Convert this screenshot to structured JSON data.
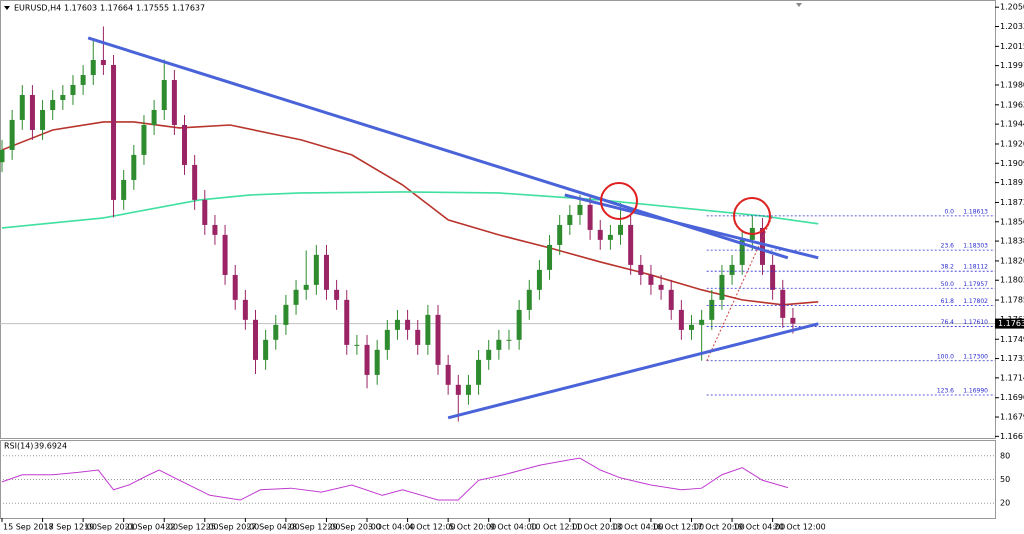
{
  "chart_data": [
    {
      "type": "candlestick",
      "title": "EURUSD,H4",
      "quote": [
        1.17603,
        1.17664,
        1.17555,
        1.17637
      ],
      "up_color": "#2e8b2e",
      "down_color": "#9a2464",
      "x": [
        0,
        2,
        4,
        6,
        8,
        10,
        12,
        14,
        16,
        18,
        20,
        22,
        24,
        26,
        28,
        30,
        32,
        34,
        36,
        38,
        40,
        42,
        44,
        46,
        48,
        50,
        52,
        54,
        56,
        58,
        60,
        62,
        64,
        66,
        68,
        70,
        72,
        74,
        76,
        78,
        80,
        82,
        84,
        86,
        88,
        90,
        92,
        94,
        96,
        98,
        100,
        102,
        104,
        106,
        108,
        110,
        112,
        114,
        116,
        118,
        120,
        122,
        124,
        126,
        128,
        130,
        132,
        134,
        136,
        138,
        140,
        142,
        144,
        146,
        148,
        150,
        152,
        154,
        156
      ],
      "open": [
        1.191,
        1.19211,
        1.19483,
        1.19709,
        1.19392,
        1.19573,
        1.19664,
        1.19709,
        1.198,
        1.1989,
        1.20026,
        1.19981,
        1.18758,
        1.18939,
        1.19166,
        1.19437,
        1.19573,
        1.19845,
        1.19437,
        1.19075,
        1.18758,
        1.18531,
        1.18441,
        1.18078,
        1.17852,
        1.17671,
        1.17308,
        1.1749,
        1.17625,
        1.17807,
        1.17943,
        1.17988,
        1.1826,
        1.17943,
        1.17852,
        1.17444,
        1.17444,
        1.17172,
        1.17399,
        1.1758,
        1.17671,
        1.1758,
        1.17444,
        1.17716,
        1.17263,
        1.17082,
        1.16991,
        1.17082,
        1.17308,
        1.17399,
        1.1749,
        1.1749,
        1.17761,
        1.17943,
        1.18124,
        1.1835,
        1.18531,
        1.18622,
        1.18713,
        1.18486,
        1.18396,
        1.18441,
        1.18531,
        1.18169,
        1.18078,
        1.17988,
        1.17943,
        1.17761,
        1.1758,
        1.17625,
        1.17671,
        1.17852,
        1.18078,
        1.18169,
        1.18396,
        1.18504,
        1.18169,
        1.17943,
        1.17689
      ],
      "high": [
        1.19301,
        1.19573,
        1.19799,
        1.19799,
        1.19663,
        1.19754,
        1.19799,
        1.1989,
        1.1998,
        1.2022,
        1.2033,
        1.20071,
        1.19029,
        1.19256,
        1.19527,
        1.19663,
        1.2003,
        1.19935,
        1.19527,
        1.19165,
        1.18848,
        1.18621,
        1.18531,
        1.18168,
        1.17942,
        1.17761,
        1.1758,
        1.17715,
        1.17897,
        1.18033,
        1.183,
        1.1835,
        1.1835,
        1.18033,
        1.17942,
        1.17534,
        1.17534,
        1.17489,
        1.1767,
        1.17761,
        1.17761,
        1.1767,
        1.17806,
        1.17806,
        1.17353,
        1.17172,
        1.17172,
        1.17398,
        1.17489,
        1.1758,
        1.1758,
        1.17851,
        1.18033,
        1.18214,
        1.1844,
        1.18621,
        1.18712,
        1.18803,
        1.18803,
        1.18576,
        1.18531,
        1.1873,
        1.18621,
        1.18259,
        1.18168,
        1.18078,
        1.18033,
        1.17851,
        1.17715,
        1.17761,
        1.17942,
        1.18168,
        1.18259,
        1.18486,
        1.1861,
        1.18594,
        1.18259,
        1.18033,
        1.17779
      ],
      "low": [
        1.1901,
        1.19121,
        1.19393,
        1.19302,
        1.19302,
        1.19483,
        1.19574,
        1.19619,
        1.1971,
        1.198,
        1.19891,
        1.186,
        1.18668,
        1.18849,
        1.19076,
        1.19347,
        1.19483,
        1.19347,
        1.18985,
        1.18668,
        1.18441,
        1.18351,
        1.17988,
        1.17762,
        1.17581,
        1.1718,
        1.17218,
        1.174,
        1.17535,
        1.17717,
        1.17853,
        1.17898,
        1.17853,
        1.17762,
        1.17354,
        1.17354,
        1.1705,
        1.17082,
        1.17309,
        1.1749,
        1.1749,
        1.17354,
        1.17354,
        1.17173,
        1.16992,
        1.1675,
        1.16901,
        1.16992,
        1.17218,
        1.17309,
        1.174,
        1.174,
        1.17671,
        1.17853,
        1.18034,
        1.1826,
        1.18441,
        1.18532,
        1.18396,
        1.18306,
        1.18306,
        1.18351,
        1.18079,
        1.17988,
        1.17898,
        1.17853,
        1.17671,
        1.1749,
        1.1749,
        1.173,
        1.17581,
        1.17762,
        1.17988,
        1.18079,
        1.18306,
        1.18079,
        1.17853,
        1.17599,
        1.17547
      ],
      "close": [
        1.19211,
        1.19483,
        1.19709,
        1.19392,
        1.19573,
        1.19664,
        1.19709,
        1.198,
        1.1989,
        1.20026,
        1.19981,
        1.18758,
        1.18939,
        1.19166,
        1.19437,
        1.19573,
        1.19845,
        1.19437,
        1.19075,
        1.18758,
        1.18531,
        1.18441,
        1.18078,
        1.17852,
        1.17671,
        1.17308,
        1.1749,
        1.17625,
        1.17807,
        1.17943,
        1.17988,
        1.1826,
        1.17943,
        1.17852,
        1.17444,
        1.17444,
        1.17172,
        1.17399,
        1.1758,
        1.17671,
        1.1758,
        1.17444,
        1.17716,
        1.17263,
        1.17082,
        1.16991,
        1.17082,
        1.17308,
        1.17399,
        1.1749,
        1.1749,
        1.17761,
        1.17943,
        1.18124,
        1.1835,
        1.18531,
        1.18622,
        1.18713,
        1.18486,
        1.18396,
        1.18441,
        1.18531,
        1.18169,
        1.18078,
        1.17988,
        1.17943,
        1.17761,
        1.1758,
        1.17625,
        1.17671,
        1.17852,
        1.18078,
        1.18169,
        1.18396,
        1.18504,
        1.18169,
        1.17943,
        1.17689,
        1.17637
      ],
      "lines": [
        {
          "color": "#b8342c",
          "x": [
            0,
            10,
            20,
            26,
            35,
            45,
            59,
            69,
            79,
            88,
            98,
            108,
            118,
            128,
            138,
            146,
            154,
            161
          ],
          "values": [
            1.19211,
            1.19392,
            1.19465,
            1.19465,
            1.1941,
            1.19437,
            1.19302,
            1.19166,
            1.18894,
            1.18577,
            1.18441,
            1.18323,
            1.18196,
            1.18078,
            1.17943,
            1.17852,
            1.17807,
            1.17834
          ]
        },
        {
          "color": "#3fe0a0",
          "x": [
            0,
            20,
            39,
            49,
            59,
            79,
            98,
            118,
            138,
            150,
            161
          ],
          "values": [
            1.18504,
            1.18595,
            1.18758,
            1.18803,
            1.18821,
            1.1883,
            1.18821,
            1.18758,
            1.18667,
            1.18613,
            1.18541
          ]
        }
      ],
      "trendlines": [
        {
          "color": "#4a63d9",
          "x": [
            17,
            155
          ],
          "values": [
            1.20226,
            1.18233
          ]
        },
        {
          "color": "#4a63d9",
          "x": [
            111,
            161
          ],
          "values": [
            1.18803,
            1.18233
          ]
        },
        {
          "color": "#4a63d9",
          "x": [
            88,
            161
          ],
          "values": [
            1.16783,
            1.17635
          ]
        }
      ],
      "fibonacci": {
        "color": "#2a2ad0",
        "anchor_color": "#d04040",
        "x": [
          139,
          152
        ],
        "values": [
          1.173,
          1.18613
        ],
        "levels": [
          {
            "level": "0.0",
            "price": 1.18613
          },
          {
            "level": "23.6",
            "price": 1.18303
          },
          {
            "level": "38.2",
            "price": 1.18112
          },
          {
            "level": "50.0",
            "price": 1.17957
          },
          {
            "level": "61.8",
            "price": 1.17802
          },
          {
            "level": "76.4",
            "price": {
              "value": 1.1761,
              "label": "1.17610"
            }
          },
          {
            "level": "100.0",
            "price": {
              "value": 1.173,
              "label": "1.17300"
            }
          },
          {
            "level": "123.6",
            "price": {
              "value": 1.1699,
              "label": "1.16990"
            }
          }
        ]
      },
      "xlim": [
        0,
        196
      ],
      "ylim": [
        1.166,
        1.2057
      ],
      "yticks": [
        1.20505,
        {
          "value": 1.2033,
          "label": "1.20330"
        },
        {
          "value": 1.2015,
          "label": "1.20150"
        },
        1.19975,
        {
          "value": 1.198,
          "label": "1.19800"
        },
        {
          "value": 1.1962,
          "label": "1.19620"
        },
        1.19445,
        1.19265,
        {
          "value": 1.1909,
          "label": "1.19090"
        },
        1.18915,
        1.18735,
        {
          "value": 1.1856,
          "label": "1.18560"
        },
        1.18385,
        1.18205,
        {
          "value": 1.1803,
          "label": "1.18030"
        },
        {
          "value": 1.1785,
          "label": "1.17850"
        },
        1.17675,
        1.17495,
        {
          "value": 1.1732,
          "label": "1.17320"
        },
        1.17145,
        1.16965,
        {
          "value": 1.1679,
          "label": "1.16790"
        },
        1.16615
      ],
      "xticks": [
        {
          "value": 0,
          "label": "15 Sep 2017"
        },
        {
          "value": 8,
          "label": "18 Sep 12:00"
        },
        {
          "value": 16,
          "label": "19 Sep 20:00"
        },
        {
          "value": 24,
          "label": "21 Sep 04:00"
        },
        {
          "value": 32,
          "label": "22 Sep 12:00"
        },
        {
          "value": 40,
          "label": "25 Sep 20:00"
        },
        {
          "value": 48,
          "label": "27 Sep 04:00"
        },
        {
          "value": 56,
          "label": "28 Sep 12:00"
        },
        {
          "value": 64,
          "label": "29 Sep 20:00"
        },
        {
          "value": 72,
          "label": "3 Oct 04:00"
        },
        {
          "value": 80,
          "label": "4 Oct 12:00"
        },
        {
          "value": 88,
          "label": "5 Oct 20:00"
        },
        {
          "value": 96,
          "label": "9 Oct 04:00"
        },
        {
          "value": 104,
          "label": "10 Oct 12:00"
        },
        {
          "value": 112,
          "label": "11 Oct 20:00"
        },
        {
          "value": 120,
          "label": "13 Oct 04:00"
        },
        {
          "value": 128,
          "label": "16 Oct 12:00"
        },
        {
          "value": 136,
          "label": "17 Oct 20:00"
        },
        {
          "value": 144,
          "label": "19 Oct 04:00"
        },
        {
          "value": 152,
          "label": "20 Oct 12:00"
        }
      ]
    },
    {
      "type": "line",
      "title": "RSI(14)",
      "last_value": 39.6924,
      "color": "#c03ad0",
      "x": [
        0,
        4,
        10,
        15,
        19,
        22,
        25,
        29,
        31,
        35,
        41,
        47,
        51,
        57,
        63,
        69,
        75,
        79,
        86,
        90,
        94,
        99,
        106,
        112,
        114,
        118,
        122,
        128,
        134,
        138,
        142,
        146,
        150,
        155
      ],
      "values": [
        47,
        56,
        56,
        59,
        62,
        37,
        43,
        56,
        62,
        49,
        30,
        24,
        37,
        39,
        34,
        43,
        30,
        37,
        24,
        24,
        49,
        56,
        68,
        75,
        77,
        62,
        52,
        43,
        37,
        39,
        56,
        65,
        49,
        39.6924
      ],
      "ylim": [
        0,
        100
      ],
      "yticks": [
        80,
        50,
        20
      ]
    }
  ]
}
